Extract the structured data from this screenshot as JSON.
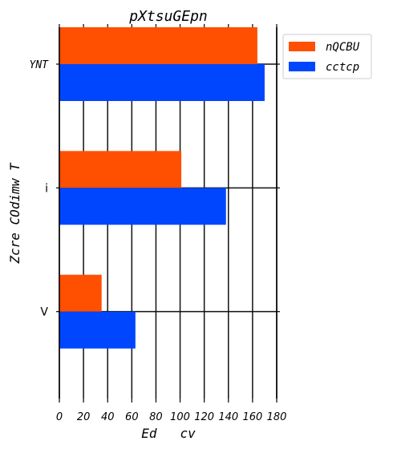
{
  "chart_data": {
    "type": "bar",
    "orientation": "horizontal",
    "title": "pXtsuGEpn",
    "xlabel": "Ed   cv",
    "ylabel": "Zcre COdimw T",
    "categories": [
      "YNT",
      "i",
      "V"
    ],
    "series": [
      {
        "name": "nQCBU",
        "color": "#ff4f00",
        "values": [
          164,
          101,
          35
        ]
      },
      {
        "name": "cctcp",
        "color": "#0046ff",
        "values": [
          170,
          138,
          63
        ]
      }
    ],
    "xlim": [
      0,
      180
    ],
    "xticks": [
      "0",
      "20",
      "40",
      "60",
      "80",
      "100",
      "120",
      "140",
      "160",
      "180"
    ],
    "grid": true,
    "legend": "top-right outside"
  }
}
